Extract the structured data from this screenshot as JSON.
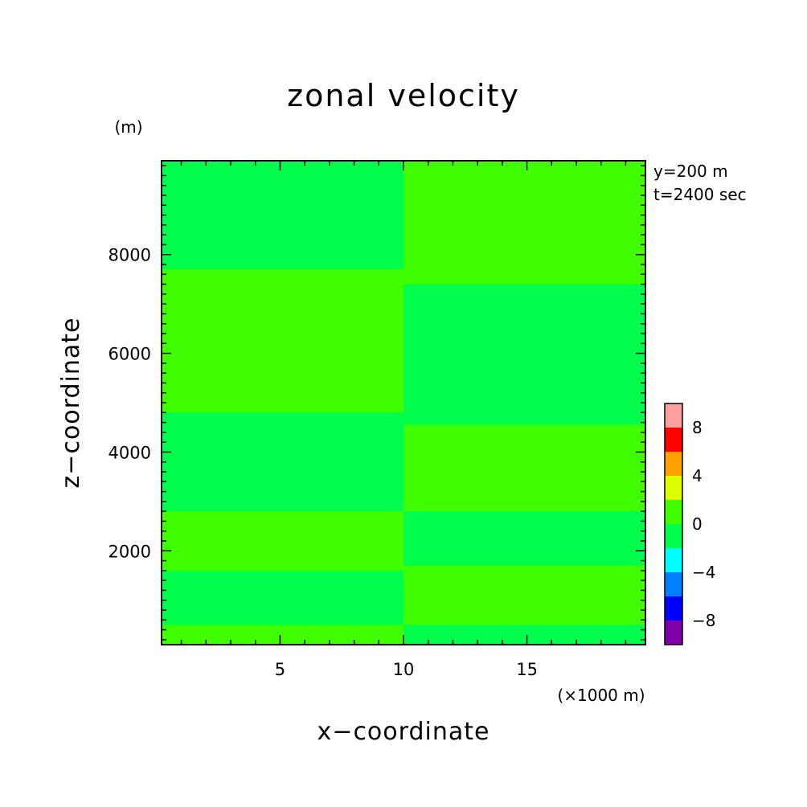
{
  "chart_data": {
    "type": "heatmap",
    "title": "zonal velocity",
    "xlabel": "x−coordinate",
    "ylabel": "z−coordinate",
    "x_unit_label": "(×1000 m)",
    "y_unit_label": "(m)",
    "xlim": [
      0.2,
      19.8
    ],
    "ylim": [
      100,
      9900
    ],
    "x_ticks": [
      {
        "value": 5,
        "label": "5"
      },
      {
        "value": 10,
        "label": "10"
      },
      {
        "value": 15,
        "label": "15"
      }
    ],
    "y_ticks": [
      {
        "value": 2000,
        "label": "2000"
      },
      {
        "value": 4000,
        "label": "4000"
      },
      {
        "value": 6000,
        "label": "6000"
      },
      {
        "value": 8000,
        "label": "8000"
      }
    ],
    "annotations": [
      "y=200 m",
      "t=2400 sec"
    ],
    "colorbar": {
      "levels": [
        -10,
        -8,
        -6,
        -4,
        -2,
        0,
        2,
        4,
        6,
        8,
        10
      ],
      "tick_labels": [
        {
          "value": 8,
          "label": "8"
        },
        {
          "value": 4,
          "label": "4"
        },
        {
          "value": 0,
          "label": "0"
        },
        {
          "value": -4,
          "label": "−4"
        },
        {
          "value": -8,
          "label": "−8"
        }
      ],
      "colors": [
        "#7f00a8",
        "#0000ff",
        "#0080ff",
        "#00ffff",
        "#00ff4c",
        "#40ff00",
        "#ddff00",
        "#ffa000",
        "#ff0000",
        "#ff9e9e"
      ]
    },
    "bands": [
      {
        "side": "left",
        "value_range": [
          0,
          2
        ],
        "z_bottom": 100,
        "z_top": 9900
      },
      {
        "side": "left",
        "value_range": [
          -2,
          0
        ],
        "z_bottom": 7700,
        "z_top": 9900
      },
      {
        "side": "left",
        "value_range": [
          -2,
          0
        ],
        "z_bottom": 2800,
        "z_top": 4800
      },
      {
        "side": "left",
        "value_range": [
          -2,
          0
        ],
        "z_bottom": 500,
        "z_top": 1600
      },
      {
        "side": "right",
        "value_range": [
          0,
          2
        ],
        "z_bottom": 100,
        "z_top": 9900
      },
      {
        "side": "right",
        "value_range": [
          -2,
          0
        ],
        "z_bottom": 4550,
        "z_top": 7400
      },
      {
        "side": "right",
        "value_range": [
          -2,
          0
        ],
        "z_bottom": 1700,
        "z_top": 2800
      },
      {
        "side": "right",
        "value_range": [
          -2,
          0
        ],
        "z_bottom": 100,
        "z_top": 500
      }
    ]
  }
}
